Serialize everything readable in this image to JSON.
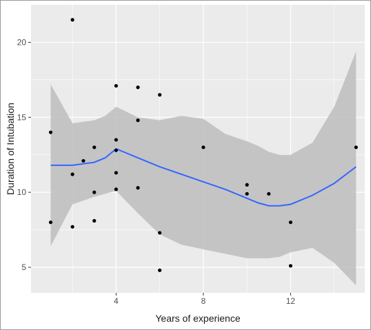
{
  "chart_data": {
    "type": "scatter",
    "xlabel": "Years of experience",
    "ylabel": "Duration of Intubation",
    "xlim": [
      0.1,
      15.4
    ],
    "ylim": [
      3.3,
      22.5
    ],
    "x_ticks": [
      4,
      8,
      12
    ],
    "y_ticks": [
      5,
      10,
      15,
      20
    ],
    "grid": true,
    "points": [
      {
        "x": 1,
        "y": 14.0
      },
      {
        "x": 1,
        "y": 8.0
      },
      {
        "x": 2,
        "y": 21.5
      },
      {
        "x": 2,
        "y": 11.2
      },
      {
        "x": 2,
        "y": 7.7
      },
      {
        "x": 2.5,
        "y": 12.1
      },
      {
        "x": 3,
        "y": 13.0
      },
      {
        "x": 3,
        "y": 10.0
      },
      {
        "x": 3,
        "y": 8.1
      },
      {
        "x": 4,
        "y": 17.1
      },
      {
        "x": 4,
        "y": 13.5
      },
      {
        "x": 4,
        "y": 12.8
      },
      {
        "x": 4,
        "y": 11.3
      },
      {
        "x": 4,
        "y": 10.2
      },
      {
        "x": 5,
        "y": 17.0
      },
      {
        "x": 5,
        "y": 14.8
      },
      {
        "x": 5,
        "y": 10.3
      },
      {
        "x": 6,
        "y": 16.5
      },
      {
        "x": 6,
        "y": 7.3
      },
      {
        "x": 6,
        "y": 4.8
      },
      {
        "x": 8,
        "y": 13.0
      },
      {
        "x": 10,
        "y": 10.5
      },
      {
        "x": 10,
        "y": 9.9
      },
      {
        "x": 11,
        "y": 9.9
      },
      {
        "x": 12,
        "y": 8.0
      },
      {
        "x": 12,
        "y": 5.1
      },
      {
        "x": 15,
        "y": 13.0
      }
    ],
    "smooth": {
      "x": [
        1,
        2,
        3,
        3.5,
        4,
        5,
        6,
        7,
        8,
        9,
        10,
        10.5,
        11,
        11.5,
        12,
        13,
        14,
        15
      ],
      "y": [
        11.8,
        11.8,
        12.0,
        12.3,
        12.9,
        12.3,
        11.7,
        11.2,
        10.7,
        10.2,
        9.6,
        9.3,
        9.1,
        9.1,
        9.2,
        9.8,
        10.6,
        11.7
      ],
      "lower": [
        6.4,
        9.2,
        9.7,
        9.9,
        10.1,
        8.6,
        7.2,
        6.5,
        6.2,
        5.9,
        5.6,
        5.6,
        5.6,
        5.7,
        6.0,
        6.3,
        5.3,
        3.8
      ],
      "upper": [
        17.2,
        14.6,
        14.8,
        15.1,
        15.7,
        15.0,
        14.8,
        15.1,
        14.9,
        13.9,
        13.4,
        13.1,
        12.7,
        12.5,
        12.5,
        13.3,
        15.7,
        19.4
      ]
    },
    "colors": {
      "panel": "#ebebeb",
      "grid_major": "#ffffff",
      "band": "#bdbdbd",
      "line": "#3366ff",
      "point": "#000000"
    }
  }
}
